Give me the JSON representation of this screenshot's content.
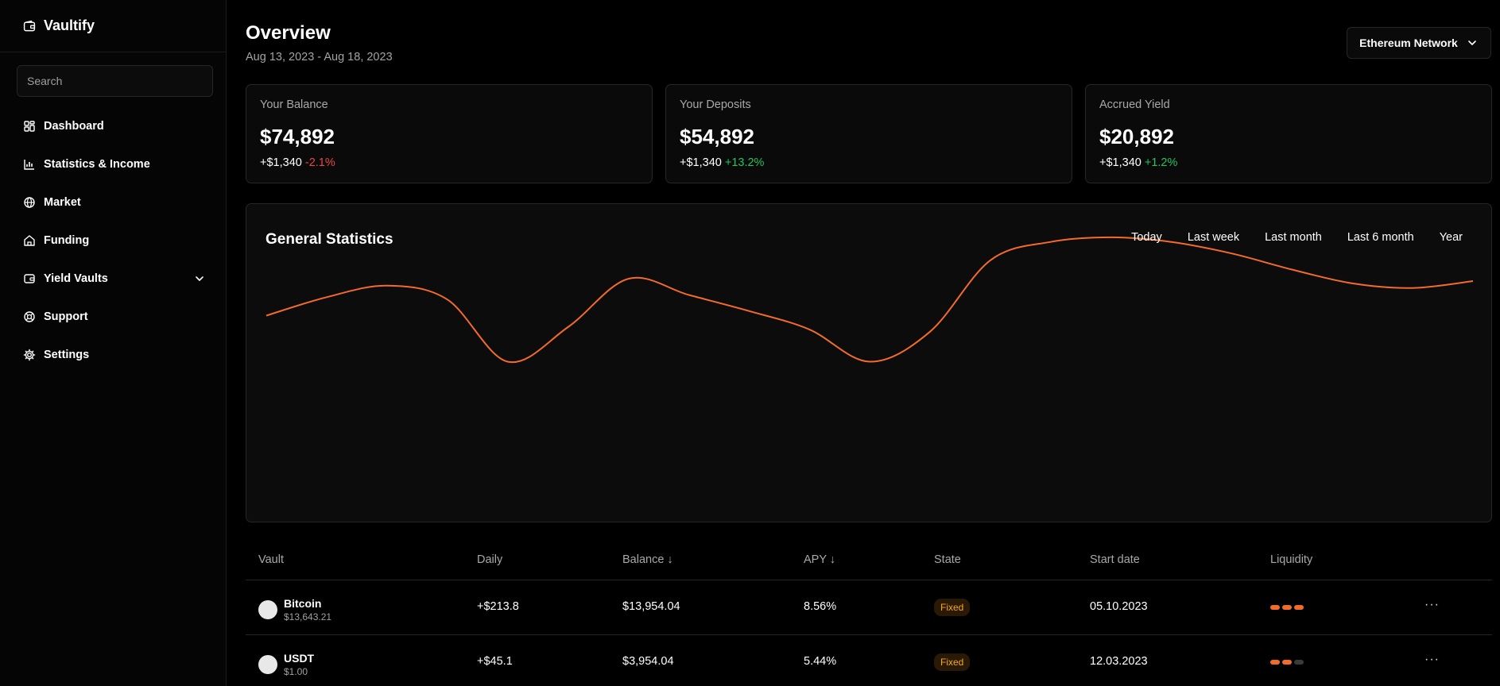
{
  "brand": {
    "name": "Vaultify"
  },
  "search": {
    "placeholder": "Search"
  },
  "nav": [
    {
      "label": "Dashboard",
      "icon": "dashboard-icon"
    },
    {
      "label": "Statistics & Income",
      "icon": "bar-chart-icon"
    },
    {
      "label": "Market",
      "icon": "globe-icon"
    },
    {
      "label": "Funding",
      "icon": "home-icon"
    },
    {
      "label": "Yield Vaults",
      "icon": "wallet-icon"
    },
    {
      "label": "Support",
      "icon": "lifebuoy-icon"
    },
    {
      "label": "Settings",
      "icon": "gear-icon"
    }
  ],
  "header": {
    "title": "Overview",
    "date_range": "Aug 13, 2023 - Aug 18, 2023",
    "network": "Ethereum Network"
  },
  "cards": [
    {
      "label": "Your Balance",
      "value": "$74,892",
      "delta": "+$1,340",
      "pct": "-2.1%",
      "trend": "negative"
    },
    {
      "label": "Your Deposits",
      "value": "$54,892",
      "delta": "+$1,340",
      "pct": "+13.2%",
      "trend": "positive"
    },
    {
      "label": "Accrued Yield",
      "value": "$20,892",
      "delta": "+$1,340",
      "pct": "+1.2%",
      "trend": "positive"
    }
  ],
  "stats": {
    "title": "General Statistics",
    "periods": [
      "Today",
      "Last week",
      "Last month",
      "Last 6 month",
      "Year"
    ],
    "line_color": "#f26b2a"
  },
  "chart_data": {
    "type": "line",
    "title": "General Statistics",
    "xlabel": "",
    "ylabel": "",
    "grid": false,
    "legend": "none",
    "ylim": [
      0,
      100
    ],
    "series": [
      {
        "values": [
          55,
          63,
          68,
          62,
          35,
          50,
          71,
          64,
          57,
          49,
          35,
          48,
          79,
          87,
          89,
          87,
          82,
          75,
          69,
          67,
          70
        ]
      }
    ]
  },
  "table": {
    "headers": [
      "Vault",
      "Daily",
      "Balance ↓",
      "APY ↓",
      "State",
      "Start date",
      "Liquidity"
    ],
    "rows": [
      {
        "name": "Bitcoin",
        "price": "$13,643.21",
        "daily": "+$213.8",
        "balance": "$13,954.04",
        "apy": "8.56%",
        "state": "Fixed",
        "start": "05.10.2023",
        "liquidity": 3
      },
      {
        "name": "USDT",
        "price": "$1.00",
        "daily": "+$45.1",
        "balance": "$3,954.04",
        "apy": "5.44%",
        "state": "Fixed",
        "start": "12.03.2023",
        "liquidity": 2
      }
    ],
    "liquidity_max": 3,
    "more_label": "···"
  },
  "colors": {
    "accent": "#f26b2a",
    "positive": "#22c55e",
    "negative": "#ef4444",
    "badge": "#f5a623"
  }
}
